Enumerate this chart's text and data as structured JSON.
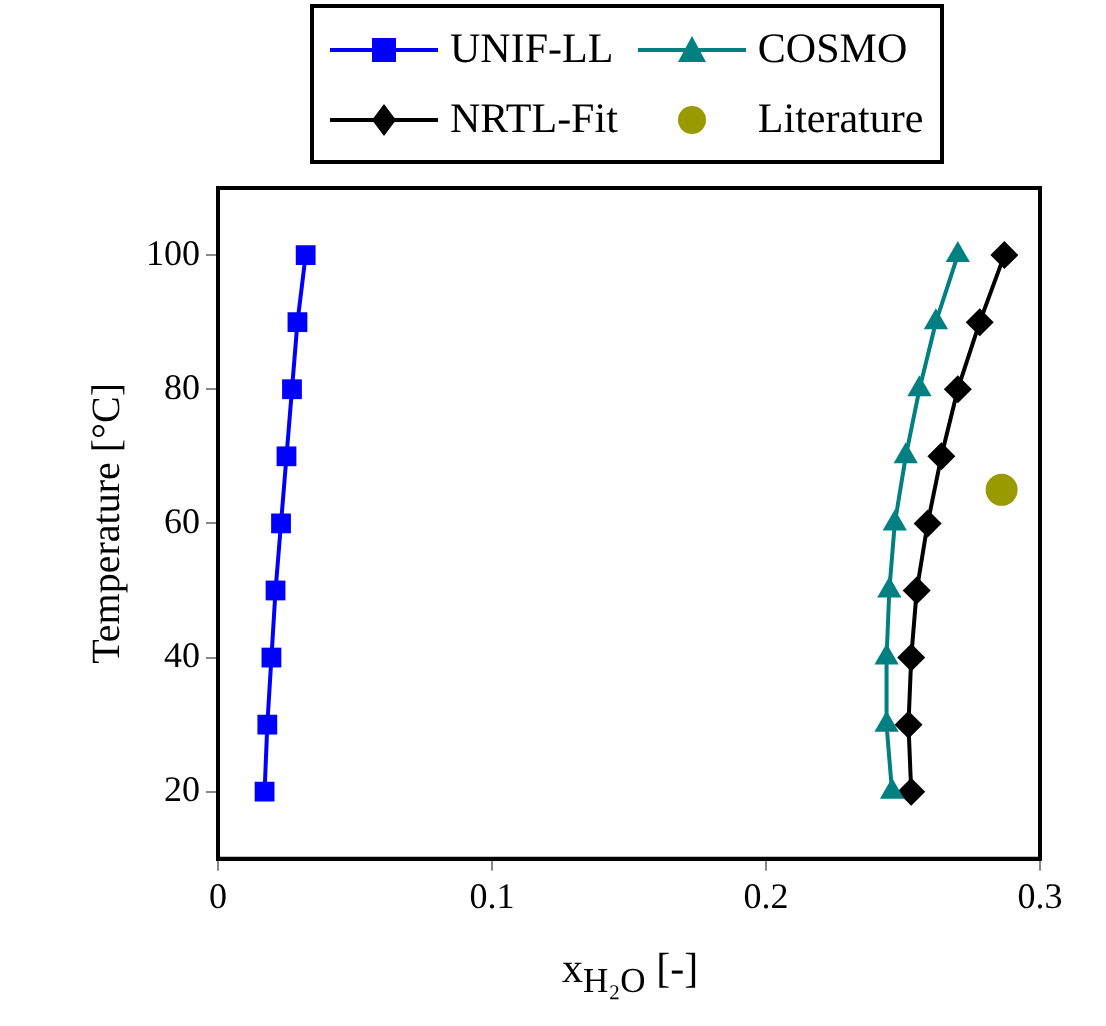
{
  "chart_data": {
    "type": "line",
    "xlabel": "x$_{H₂O}$ [-]",
    "ylabel": "Temperature [°C]",
    "xlim": [
      0,
      0.3
    ],
    "xticks": [
      0,
      0.1,
      0.2,
      0.3
    ],
    "ylim": [
      10,
      110
    ],
    "yticks": [
      20,
      40,
      60,
      80,
      100
    ],
    "grid": false,
    "legend": "top",
    "series": [
      {
        "name": "UNIF-LL",
        "color": "#0000ff",
        "marker": "square",
        "x": [
          0.017,
          0.018,
          0.0195,
          0.021,
          0.023,
          0.025,
          0.027,
          0.029,
          0.032
        ],
        "values": [
          20,
          30,
          40,
          50,
          60,
          70,
          80,
          90,
          100
        ]
      },
      {
        "name": "COSMO",
        "color": "#008080",
        "marker": "triangle",
        "x": [
          0.246,
          0.244,
          0.244,
          0.245,
          0.247,
          0.251,
          0.256,
          0.262,
          0.27
        ],
        "values": [
          20,
          30,
          40,
          50,
          60,
          70,
          80,
          90,
          100
        ]
      },
      {
        "name": "NRTL-Fit",
        "color": "#000000",
        "marker": "diamond",
        "x": [
          0.253,
          0.252,
          0.253,
          0.255,
          0.259,
          0.264,
          0.27,
          0.278,
          0.287
        ],
        "values": [
          20,
          30,
          40,
          50,
          60,
          70,
          80,
          90,
          100
        ]
      },
      {
        "name": "Literature",
        "color": "#999900",
        "type": "scatter",
        "marker": "circle",
        "x": [
          0.286
        ],
        "values": [
          65
        ]
      }
    ]
  }
}
